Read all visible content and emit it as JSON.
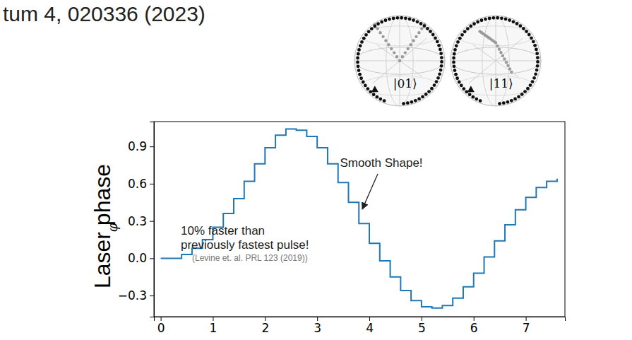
{
  "header": "tum 4, 020336 (2023)",
  "insets": [
    {
      "label": "|01⟩"
    },
    {
      "label": "|11⟩"
    }
  ],
  "chart_data": {
    "type": "line",
    "line_style": "step",
    "side_label": "Laser phase",
    "ylabel": "φ",
    "color": "#1f77b4",
    "x": [
      0.0,
      0.2,
      0.4,
      0.6,
      0.8,
      1.0,
      1.2,
      1.4,
      1.6,
      1.8,
      2.0,
      2.2,
      2.4,
      2.6,
      2.8,
      3.0,
      3.2,
      3.4,
      3.6,
      3.8,
      4.0,
      4.2,
      4.4,
      4.6,
      4.8,
      5.0,
      5.2,
      5.4,
      5.6,
      5.8,
      6.0,
      6.2,
      6.4,
      6.6,
      6.8,
      7.0,
      7.2,
      7.4,
      7.6
    ],
    "values": [
      0.0,
      0.0,
      0.03,
      0.08,
      0.15,
      0.25,
      0.36,
      0.48,
      0.62,
      0.76,
      0.89,
      0.99,
      1.04,
      1.03,
      0.98,
      0.89,
      0.76,
      0.61,
      0.45,
      0.28,
      0.12,
      -0.02,
      -0.15,
      -0.26,
      -0.34,
      -0.39,
      -0.4,
      -0.38,
      -0.32,
      -0.23,
      -0.12,
      0.01,
      0.14,
      0.27,
      0.39,
      0.49,
      0.57,
      0.62,
      0.64
    ],
    "xlim": [
      -0.13,
      7.75
    ],
    "xticks": [
      0,
      1,
      2,
      3,
      4,
      5,
      6,
      7
    ],
    "ylim": [
      -0.47,
      1.1
    ],
    "yticks": [
      {
        "value": -0.3,
        "label": "−0.3"
      },
      {
        "value": 0,
        "label": "0.0"
      },
      0.3,
      0.6,
      0.9
    ],
    "grid": false,
    "annotations": [
      {
        "text": "Smooth Shape!"
      },
      {
        "text": "10% faster than"
      },
      {
        "text": "previously fastest pulse!"
      },
      {
        "text": "(Levine et. al.  PRL 123 (2019))"
      }
    ]
  }
}
